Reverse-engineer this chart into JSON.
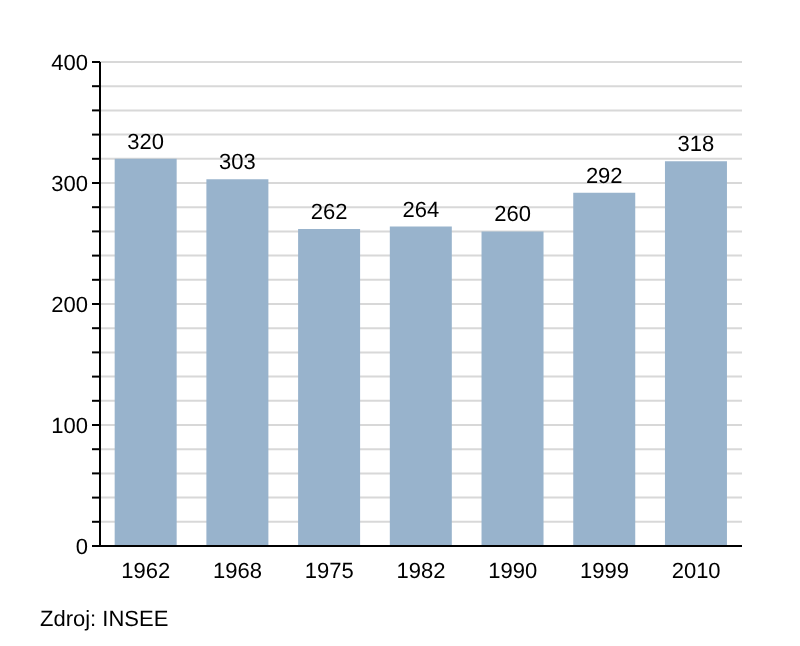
{
  "chart_data": {
    "type": "bar",
    "categories": [
      "1962",
      "1968",
      "1975",
      "1982",
      "1990",
      "1999",
      "2010"
    ],
    "values": [
      320,
      303,
      262,
      264,
      260,
      292,
      318
    ],
    "color": "#98b3cc",
    "data_labels": true,
    "ylim": [
      0,
      400
    ],
    "yticks": [
      0,
      {
        "value": 20,
        "label": null
      },
      {
        "value": 40,
        "label": null
      },
      {
        "value": 60,
        "label": null
      },
      {
        "value": 80,
        "label": null
      },
      100,
      {
        "value": 120,
        "label": null
      },
      {
        "value": 140,
        "label": null
      },
      {
        "value": 160,
        "label": null
      },
      {
        "value": 180,
        "label": null
      },
      200,
      {
        "value": 220,
        "label": null
      },
      {
        "value": 240,
        "label": null
      },
      {
        "value": 260,
        "label": null
      },
      {
        "value": 280,
        "label": null
      },
      300,
      {
        "value": 320,
        "label": null
      },
      {
        "value": 340,
        "label": null
      },
      {
        "value": 360,
        "label": null
      },
      {
        "value": 380,
        "label": null
      },
      400
    ],
    "grid": "y",
    "annotations": [
      "Zdroj: INSEE"
    ]
  }
}
